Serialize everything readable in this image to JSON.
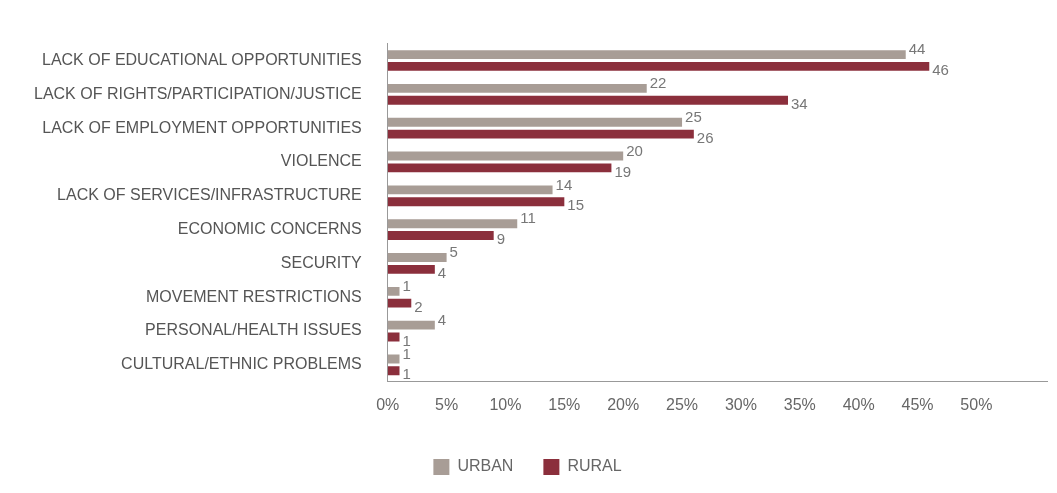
{
  "chart_data": {
    "type": "bar",
    "orientation": "horizontal",
    "categories": [
      "LACK OF EDUCATIONAL OPPORTUNITIES",
      "LACK OF RIGHTS/PARTICIPATION/JUSTICE",
      "LACK OF EMPLOYMENT OPPORTUNITIES",
      "VIOLENCE",
      "LACK OF SERVICES/INFRASTRUCTURE",
      "ECONOMIC CONCERNS",
      "SECURITY",
      "MOVEMENT RESTRICTIONS",
      "PERSONAL/HEALTH ISSUES",
      "CULTURAL/ETHNIC PROBLEMS"
    ],
    "series": [
      {
        "name": "URBAN",
        "color": "#a89d96",
        "values": [
          44,
          22,
          25,
          20,
          14,
          11,
          5,
          1,
          4,
          1
        ]
      },
      {
        "name": "RURAL",
        "color": "#8b2f3c",
        "values": [
          46,
          34,
          26,
          19,
          15,
          9,
          4,
          2,
          1,
          1
        ]
      }
    ],
    "xlim": [
      0,
      56
    ],
    "xticks": [
      {
        "value": 0,
        "label": "0%"
      },
      {
        "value": 5,
        "label": "5%"
      },
      {
        "value": 10,
        "label": "10%"
      },
      {
        "value": 15,
        "label": "15%"
      },
      {
        "value": 20,
        "label": "20%"
      },
      {
        "value": 25,
        "label": "25%"
      },
      {
        "value": 30,
        "label": "30%"
      },
      {
        "value": 35,
        "label": "35%"
      },
      {
        "value": 40,
        "label": "40%"
      },
      {
        "value": 45,
        "label": "45%"
      },
      {
        "value": 50,
        "label": "50%"
      }
    ],
    "data_labels": true,
    "grid": false,
    "legend": "bottom"
  }
}
